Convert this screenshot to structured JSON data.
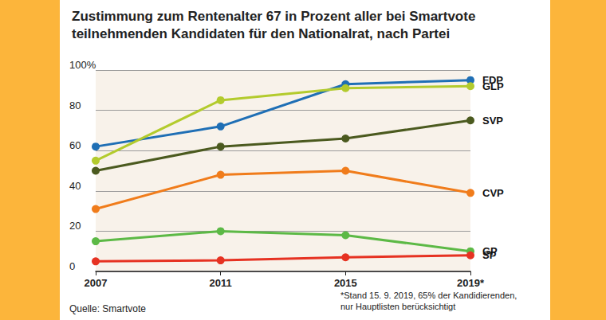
{
  "chart_data": {
    "type": "line",
    "title": "Zustimmung zum Rentenalter 67 in Prozent aller bei Smartvote\nteilnehmenden Kandidaten für den Nationalrat, nach Partei",
    "categories": [
      "2007",
      "2011",
      "2015",
      "2019*"
    ],
    "series": [
      {
        "name": "FDP",
        "color": "#1f6fb5",
        "values": [
          62,
          72,
          93,
          95
        ]
      },
      {
        "name": "GLP",
        "color": "#b3cb2d",
        "values": [
          55,
          85,
          91,
          92
        ]
      },
      {
        "name": "SVP",
        "color": "#4b5a1f",
        "values": [
          50,
          62,
          66,
          75
        ]
      },
      {
        "name": "CVP",
        "color": "#f07c1b",
        "values": [
          31,
          48,
          50,
          39
        ]
      },
      {
        "name": "GP",
        "color": "#5cb946",
        "values": [
          15,
          20,
          18,
          10
        ]
      },
      {
        "name": "SP",
        "color": "#e63222",
        "values": [
          5,
          5.5,
          7,
          8
        ]
      }
    ],
    "ylim": [
      0,
      100
    ],
    "yticks": [
      0,
      20,
      40,
      60,
      80,
      {
        "value": 100,
        "label": "100%"
      }
    ],
    "grid": true,
    "marker": "circle",
    "source": "Quelle: Smartvote",
    "note": "*Stand 15. 9. 2019, 65% der Kandidierenden,\nnur Hauptlisten berücksichtigt"
  }
}
